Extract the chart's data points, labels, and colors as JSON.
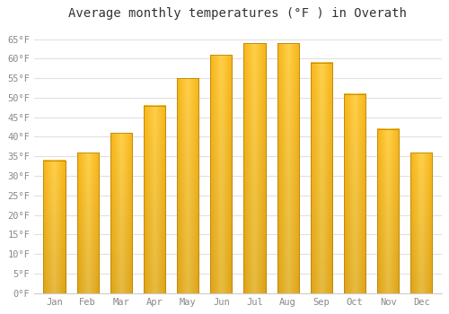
{
  "title": "Average monthly temperatures (°F ) in Overath",
  "months": [
    "Jan",
    "Feb",
    "Mar",
    "Apr",
    "May",
    "Jun",
    "Jul",
    "Aug",
    "Sep",
    "Oct",
    "Nov",
    "Dec"
  ],
  "values": [
    34,
    36,
    41,
    48,
    55,
    61,
    64,
    64,
    59,
    51,
    42,
    36
  ],
  "bar_color_center": "#FFD04A",
  "bar_color_edge": "#F5A800",
  "bar_border_color": "#B8860B",
  "background_color": "#ffffff",
  "grid_color": "#e0e0e0",
  "ylim": [
    0,
    68
  ],
  "yticks": [
    0,
    5,
    10,
    15,
    20,
    25,
    30,
    35,
    40,
    45,
    50,
    55,
    60,
    65
  ],
  "ylabel_suffix": "°F",
  "title_fontsize": 10,
  "tick_fontsize": 7.5,
  "tick_color": "#888888",
  "figsize": [
    5.0,
    3.5
  ],
  "dpi": 100,
  "bar_width": 0.65
}
